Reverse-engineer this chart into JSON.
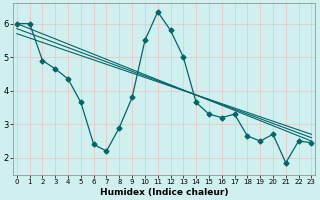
{
  "xlabel": "Humidex (Indice chaleur)",
  "bg_color": "#d0f0f0",
  "grid_color": "#b8dede",
  "line_color": "#006666",
  "x": [
    0,
    1,
    2,
    3,
    4,
    5,
    6,
    7,
    8,
    9,
    10,
    11,
    12,
    13,
    14,
    15,
    16,
    17,
    18,
    19,
    20,
    21,
    22,
    23
  ],
  "series_main": [
    6.0,
    6.0,
    4.9,
    4.65,
    4.35,
    3.65,
    2.4,
    2.2,
    2.9,
    3.8,
    5.5,
    6.35,
    5.8,
    5.0,
    3.65,
    3.3,
    3.2,
    3.3,
    2.65,
    2.5,
    2.7,
    1.85,
    2.5,
    2.45
  ],
  "line1_x": [
    0,
    23
  ],
  "line1_y": [
    6.0,
    2.5
  ],
  "line2_x": [
    0,
    23
  ],
  "line2_y": [
    5.85,
    2.6
  ],
  "line3_x": [
    0,
    23
  ],
  "line3_y": [
    5.7,
    2.7
  ],
  "ylim": [
    1.5,
    6.6
  ],
  "xlim": [
    -0.3,
    23.3
  ],
  "yticks": [
    2,
    3,
    4,
    5,
    6
  ],
  "xticks": [
    0,
    1,
    2,
    3,
    4,
    5,
    6,
    7,
    8,
    9,
    10,
    11,
    12,
    13,
    14,
    15,
    16,
    17,
    18,
    19,
    20,
    21,
    22,
    23
  ]
}
